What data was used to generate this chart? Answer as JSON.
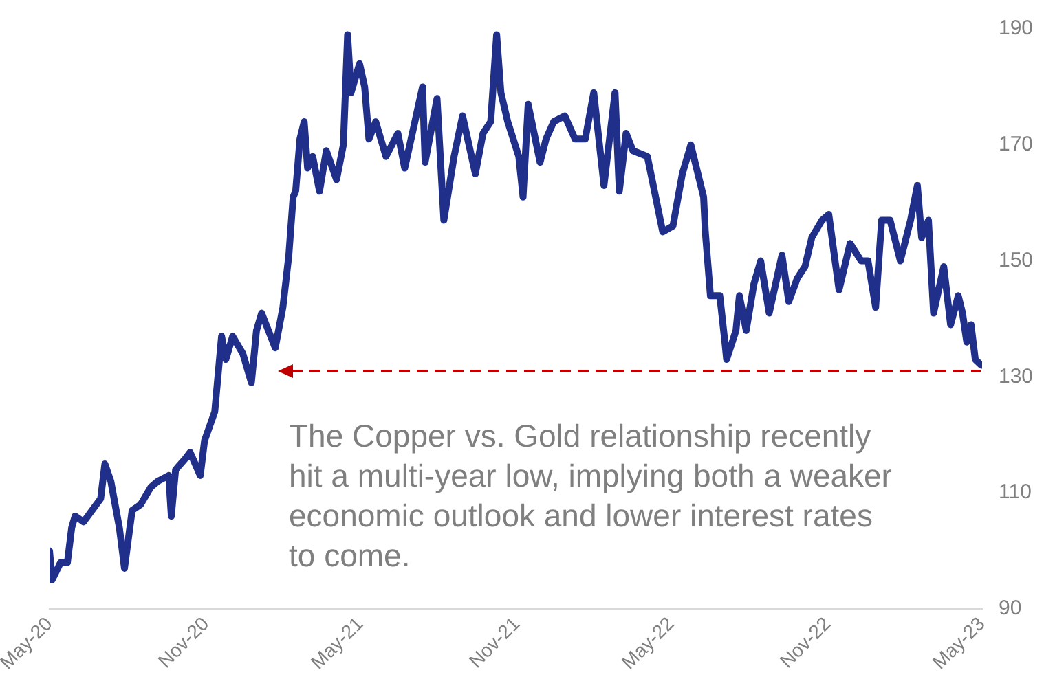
{
  "chart_data": {
    "type": "line",
    "xlim": [
      "2020-05-01",
      "2023-05-01"
    ],
    "ylim": [
      90,
      190
    ],
    "xticks": [
      {
        "value": "2020-05-01",
        "label": "May-20"
      },
      {
        "value": "2020-11-01",
        "label": "Nov-20"
      },
      {
        "value": "2021-05-01",
        "label": "May-21"
      },
      {
        "value": "2021-11-01",
        "label": "Nov-21"
      },
      {
        "value": "2022-05-01",
        "label": "May-22"
      },
      {
        "value": "2022-11-01",
        "label": "Nov-22"
      },
      {
        "value": "2023-05-01",
        "label": "May-23"
      }
    ],
    "yticks": [
      90,
      110,
      130,
      150,
      170,
      190
    ],
    "grid": false,
    "legend": false,
    "marker": "none",
    "annotations": [
      "The Copper vs. Gold relationship recently hit a multi-year low, implying both a weaker economic outlook and lower interest rates to come."
    ],
    "series": [
      {
        "color": "#1f2f8a",
        "line_style": "solid",
        "x": [
          "2020-05-01",
          "2020-05-04",
          "2020-05-14",
          "2020-05-22",
          "2020-05-27",
          "2020-05-31",
          "2020-06-10",
          "2020-06-20",
          "2020-06-30",
          "2020-07-05",
          "2020-07-12",
          "2020-07-22",
          "2020-07-28",
          "2020-08-06",
          "2020-08-16",
          "2020-08-28",
          "2020-09-05",
          "2020-09-18",
          "2020-09-21",
          "2020-09-26",
          "2020-10-08",
          "2020-10-13",
          "2020-10-25",
          "2020-10-30",
          "2020-11-11",
          "2020-11-19",
          "2020-11-24",
          "2020-12-02",
          "2020-12-14",
          "2020-12-24",
          "2020-12-30",
          "2021-01-05",
          "2021-01-21",
          "2021-01-30",
          "2021-02-06",
          "2021-02-11",
          "2021-02-14",
          "2021-02-19",
          "2021-02-24",
          "2021-02-28",
          "2021-03-06",
          "2021-03-14",
          "2021-03-22",
          "2021-04-03",
          "2021-04-11",
          "2021-04-16",
          "2021-04-20",
          "2021-04-30",
          "2021-05-06",
          "2021-05-11",
          "2021-05-19",
          "2021-05-31",
          "2021-06-14",
          "2021-06-22",
          "2021-07-13",
          "2021-07-16",
          "2021-07-30",
          "2021-08-07",
          "2021-08-19",
          "2021-08-29",
          "2021-09-13",
          "2021-09-22",
          "2021-10-01",
          "2021-10-08",
          "2021-10-13",
          "2021-10-21",
          "2021-11-03",
          "2021-11-08",
          "2021-11-14",
          "2021-11-28",
          "2021-12-05",
          "2021-12-14",
          "2021-12-27",
          "2022-01-08",
          "2022-01-20",
          "2022-01-30",
          "2022-02-11",
          "2022-02-24",
          "2022-03-01",
          "2022-03-09",
          "2022-03-17",
          "2022-04-03",
          "2022-04-21",
          "2022-05-03",
          "2022-05-14",
          "2022-05-24",
          "2022-06-08",
          "2022-06-10",
          "2022-06-16",
          "2022-06-27",
          "2022-07-03",
          "2022-07-05",
          "2022-07-16",
          "2022-07-20",
          "2022-07-28",
          "2022-08-06",
          "2022-08-14",
          "2022-08-24",
          "2022-09-08",
          "2022-09-16",
          "2022-09-26",
          "2022-10-05",
          "2022-10-13",
          "2022-10-25",
          "2022-11-02",
          "2022-11-14",
          "2022-11-27",
          "2022-12-10",
          "2022-12-18",
          "2022-12-27",
          "2023-01-03",
          "2023-01-13",
          "2023-01-25",
          "2023-02-06",
          "2023-02-14",
          "2023-02-19",
          "2023-02-27",
          "2023-03-05",
          "2023-03-17",
          "2023-03-25",
          "2023-04-03",
          "2023-04-08",
          "2023-04-13",
          "2023-04-18",
          "2023-04-23",
          "2023-04-30"
        ],
        "values": [
          100,
          95,
          98,
          98,
          104,
          106,
          105,
          107,
          109,
          115,
          112,
          104,
          97,
          107,
          108,
          111,
          112,
          113,
          106,
          114,
          116,
          117,
          113,
          119,
          124,
          137,
          133,
          137,
          134,
          129,
          138,
          141,
          135,
          142,
          151,
          161,
          162,
          171,
          174,
          166,
          168,
          162,
          169,
          164,
          170,
          189,
          179,
          184,
          180,
          171,
          174,
          168,
          172,
          166,
          180,
          167,
          178,
          157,
          168,
          175,
          165,
          172,
          174,
          189,
          179,
          174,
          168,
          161,
          177,
          167,
          171,
          174,
          175,
          171,
          171,
          179,
          163,
          179,
          162,
          172,
          169,
          168,
          155,
          156,
          165,
          170,
          161,
          155,
          144,
          144,
          136,
          133,
          138,
          144,
          138,
          146,
          150,
          141,
          151,
          143,
          147,
          149,
          154,
          157,
          158,
          145,
          153,
          150,
          150,
          142,
          157,
          157,
          150,
          157,
          163,
          154,
          157,
          141,
          149,
          139,
          144,
          141,
          136,
          139,
          133,
          132
        ]
      }
    ]
  }
}
